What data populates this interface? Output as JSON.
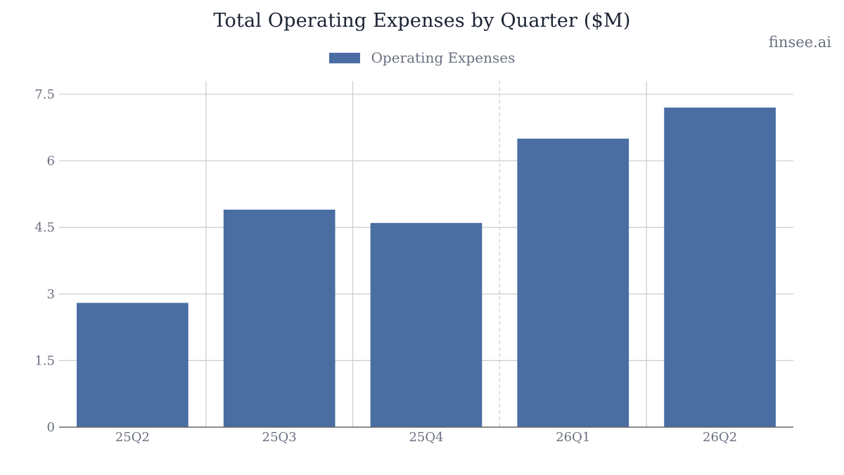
{
  "watermark": "finsee.ai",
  "colors": {
    "bar": "#4a6da2",
    "grid": "#cccccc",
    "axis": "#666666",
    "text": "#6b7080"
  },
  "chart_data": {
    "type": "bar",
    "title": "Total Operating Expenses by Quarter ($M)",
    "xlabel": "",
    "ylabel": "",
    "categories": [
      "25Q2",
      "25Q3",
      "25Q4",
      "26Q1",
      "26Q2"
    ],
    "series": [
      {
        "name": "Operating Expenses",
        "values": [
          2.8,
          4.9,
          4.6,
          6.5,
          7.2
        ]
      }
    ],
    "ylim": [
      0,
      7.8
    ],
    "yticks": [
      0,
      1.5,
      3,
      4.5,
      6,
      7.5
    ],
    "ytick_labels": [
      "0",
      "1.5",
      "3",
      "4.5",
      "6",
      "7.5"
    ],
    "grid": true,
    "legend_position": "top-center",
    "vertical_separator_styles": [
      "solid",
      "solid",
      "dashed",
      "solid"
    ]
  }
}
